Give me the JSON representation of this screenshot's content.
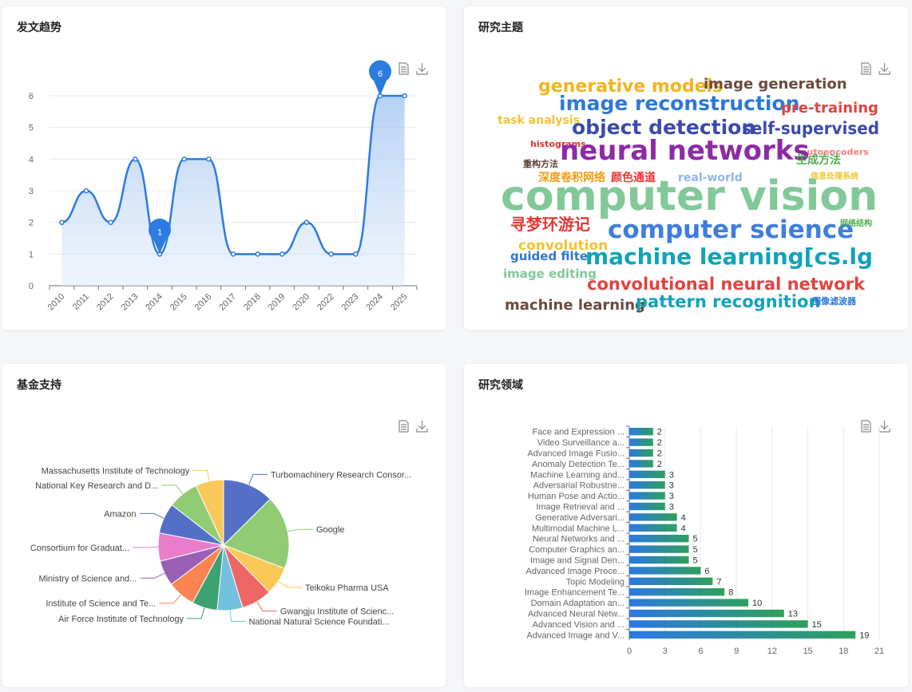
{
  "cards": {
    "trend_title": "发文趋势",
    "topics_title": "研究主题",
    "fund_title": "基金支持",
    "field_title": "研究领域"
  },
  "icons": {
    "data_view": "document-icon",
    "download": "download-icon"
  },
  "chart_data": [
    {
      "type": "area",
      "categories": [
        "2010",
        "2011",
        "2012",
        "2013",
        "2014",
        "2015",
        "2016",
        "2017",
        "2018",
        "2019",
        "2020",
        "2022",
        "2023",
        "2024",
        "2025"
      ],
      "values": [
        2,
        3,
        2,
        4,
        1,
        4,
        4,
        1,
        1,
        1,
        2,
        1,
        1,
        6,
        6
      ],
      "ylim": [
        0,
        6
      ],
      "yticks": [
        0,
        1,
        2,
        3,
        4,
        5,
        6
      ],
      "markers": [
        {
          "category": "2014",
          "value": 1,
          "label": "1"
        },
        {
          "category": "2024",
          "value": 6,
          "label": "6"
        }
      ],
      "color": "#2b7be0"
    },
    {
      "type": "wordcloud",
      "words": [
        {
          "text": "generative models",
          "color": "#f2b51c"
        },
        {
          "text": "image generation",
          "color": "#6b4a3e"
        },
        {
          "text": "image reconstruction",
          "color": "#2d78d6"
        },
        {
          "text": "pre-training",
          "color": "#e04440"
        },
        {
          "text": "task analysis",
          "color": "#f2c430"
        },
        {
          "text": "object detection",
          "color": "#3a4bac"
        },
        {
          "text": "self-supervised",
          "color": "#3a4bac"
        },
        {
          "text": "histograms",
          "color": "#d8332f"
        },
        {
          "text": "autoencoders",
          "color": "#f08080"
        },
        {
          "text": "neural networks",
          "color": "#8e2aa5"
        },
        {
          "text": "生成方法",
          "color": "#4caf50"
        },
        {
          "text": "重构方法",
          "color": "#5d4037"
        },
        {
          "text": "深度卷积网络",
          "color": "#f39c12"
        },
        {
          "text": "颜色通道",
          "color": "#e53935"
        },
        {
          "text": "real-world",
          "color": "#90b4f0"
        },
        {
          "text": "信息处理系统",
          "color": "#f2c430"
        },
        {
          "text": "computer vision",
          "color": "#82c99a"
        },
        {
          "text": "寻梦环游记",
          "color": "#e53935"
        },
        {
          "text": "computer science",
          "color": "#3d7ee0"
        },
        {
          "text": "网络结构",
          "color": "#4caf50"
        },
        {
          "text": "convolution",
          "color": "#f2c430"
        },
        {
          "text": "guided filter",
          "color": "#2d78d6"
        },
        {
          "text": "machine learning[cs.lg",
          "color": "#11a3b8"
        },
        {
          "text": "image editing",
          "color": "#82c99a"
        },
        {
          "text": "convolutional neural network",
          "color": "#e04440"
        },
        {
          "text": "machine learning",
          "color": "#6b4a3e"
        },
        {
          "text": "pattern recognition",
          "color": "#11a3b8"
        },
        {
          "text": "图像滤波器",
          "color": "#2d78d6"
        }
      ]
    },
    {
      "type": "pie",
      "slices": [
        {
          "name": "Turbomachinery Research Consor...",
          "value": 1,
          "color": "#5470c6"
        },
        {
          "name": "Google",
          "value": 1.45,
          "color": "#91cc75"
        },
        {
          "name": "Teikoku Pharma USA",
          "value": 0.55,
          "color": "#fac858"
        },
        {
          "name": "Gwangju Institute of Scienc...",
          "value": 0.6,
          "color": "#ee6666"
        },
        {
          "name": "National Natural Science Foundati...",
          "value": 0.5,
          "color": "#73c0de"
        },
        {
          "name": "Air Force Institute of Technology",
          "value": 0.5,
          "color": "#3ba272"
        },
        {
          "name": "Institute of Science and Te...",
          "value": 0.55,
          "color": "#fc8452"
        },
        {
          "name": "Ministry of Science and...",
          "value": 0.5,
          "color": "#9a60b4"
        },
        {
          "name": "Consortium for Graduat...",
          "value": 0.55,
          "color": "#ea7ccc"
        },
        {
          "name": "Amazon",
          "value": 0.6,
          "color": "#5470c6"
        },
        {
          "name": "National Key Research and D...",
          "value": 0.6,
          "color": "#91cc75"
        },
        {
          "name": "Massachusetts Institute of Technology",
          "value": 0.55,
          "color": "#fac858"
        }
      ]
    },
    {
      "type": "bar",
      "orientation": "horizontal",
      "categories": [
        "Face and Expression ...",
        "Video Surveillance a...",
        "Advanced Image Fusio...",
        "Anomaly Detection Te...",
        "Machine Learning and...",
        "Adversarial Robustne...",
        "Human Pose and Actio...",
        "Image Retrieval and ...",
        "Generative Adversari...",
        "Multimodal Machine L...",
        "Neural Networks and ...",
        "Computer Graphics an...",
        "Image and Signal Den...",
        "Advanced Image Proce...",
        "Topic Modeling",
        "Image Enhancement Te...",
        "Domain Adaptation an...",
        "Advanced Neural Netw...",
        "Advanced Vision and ...",
        "Advanced Image and V..."
      ],
      "values": [
        2,
        2,
        2,
        2,
        3,
        3,
        3,
        3,
        4,
        4,
        5,
        5,
        5,
        6,
        7,
        8,
        10,
        13,
        15,
        19
      ],
      "xlim": [
        0,
        21
      ],
      "xticks": [
        0,
        3,
        6,
        9,
        12,
        15,
        18,
        21
      ],
      "gradient": [
        "#2b78e4",
        "#2ea05a"
      ]
    }
  ]
}
